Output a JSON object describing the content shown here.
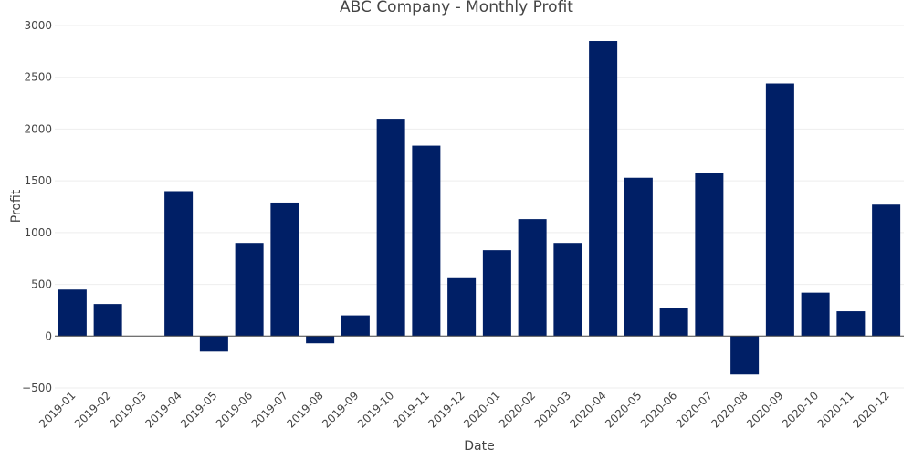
{
  "chart_data": {
    "type": "bar",
    "title": "ABC Company - Monthly Profit",
    "xlabel": "Date",
    "ylabel": "Profit",
    "categories": [
      "2019-01",
      "2019-02",
      "2019-03",
      "2019-04",
      "2019-05",
      "2019-06",
      "2019-07",
      "2019-08",
      "2019-09",
      "2019-10",
      "2019-11",
      "2019-12",
      "2020-01",
      "2020-02",
      "2020-03",
      "2020-04",
      "2020-05",
      "2020-06",
      "2020-07",
      "2020-08",
      "2020-09",
      "2020-10",
      "2020-11",
      "2020-12"
    ],
    "values": [
      450,
      310,
      0,
      1400,
      -150,
      900,
      1290,
      -70,
      200,
      2100,
      1840,
      560,
      830,
      1130,
      900,
      2850,
      1530,
      270,
      1580,
      -370,
      2440,
      420,
      240,
      1270
    ],
    "ylim": [
      -500,
      3000
    ],
    "yticks": [
      -500,
      0,
      500,
      1000,
      1500,
      2000,
      2500,
      3000
    ],
    "ytick_labels": [
      "−500",
      "0",
      "500",
      "1000",
      "1500",
      "2000",
      "2500",
      "3000"
    ],
    "grid": true,
    "colors": {
      "bar": "#001f66",
      "grid": "#eeeeee",
      "zero_line": "#444444",
      "text": "#444444"
    }
  }
}
